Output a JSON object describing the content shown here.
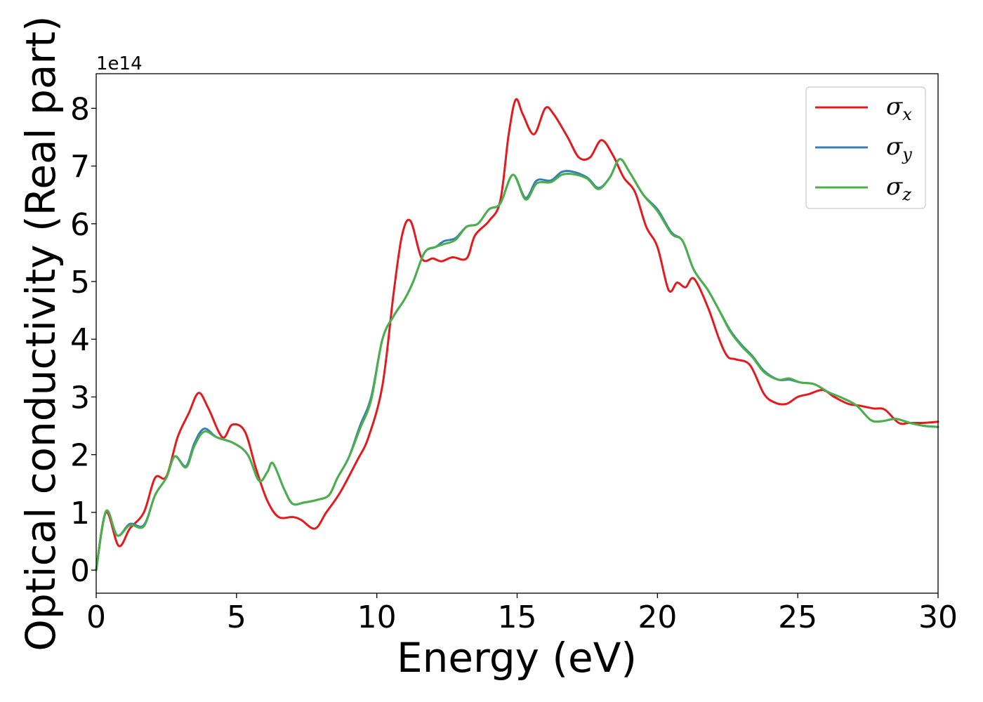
{
  "chart_data": {
    "type": "line",
    "xlabel": "Energy (eV)",
    "ylabel": "Optical conductivity (Real part)",
    "y_offset_label": "1e14",
    "y_scale": 100000000000000.0,
    "xlim": [
      0,
      30
    ],
    "ylim": [
      -0.4,
      8.6
    ],
    "x_ticks": [
      0,
      5,
      10,
      15,
      20,
      25,
      30
    ],
    "x_tick_labels": [
      "0",
      "5",
      "10",
      "15",
      "20",
      "25",
      "30"
    ],
    "y_ticks": [
      0,
      1,
      2,
      3,
      4,
      5,
      6,
      7,
      8
    ],
    "y_tick_labels": [
      "0",
      "1",
      "2",
      "3",
      "4",
      "5",
      "6",
      "7",
      "8"
    ],
    "grid": false,
    "legend_position": "top-right",
    "series": [
      {
        "name": "σx",
        "symbol": "σ",
        "subscript": "x",
        "color": "#e41a1c",
        "points": [
          [
            0,
            0
          ],
          [
            0.35,
            1.0
          ],
          [
            0.8,
            0.42
          ],
          [
            1.2,
            0.72
          ],
          [
            1.7,
            1.0
          ],
          [
            2.1,
            1.6
          ],
          [
            2.5,
            1.62
          ],
          [
            2.9,
            2.3
          ],
          [
            3.3,
            2.72
          ],
          [
            3.65,
            3.07
          ],
          [
            4.0,
            2.8
          ],
          [
            4.5,
            2.3
          ],
          [
            4.85,
            2.52
          ],
          [
            5.3,
            2.4
          ],
          [
            5.7,
            1.75
          ],
          [
            6.1,
            1.2
          ],
          [
            6.5,
            0.92
          ],
          [
            7.0,
            0.92
          ],
          [
            7.3,
            0.87
          ],
          [
            7.8,
            0.72
          ],
          [
            8.2,
            1.0
          ],
          [
            8.7,
            1.35
          ],
          [
            9.3,
            1.9
          ],
          [
            9.7,
            2.3
          ],
          [
            10.2,
            3.2
          ],
          [
            10.6,
            4.8
          ],
          [
            10.9,
            5.8
          ],
          [
            11.2,
            6.05
          ],
          [
            11.6,
            5.4
          ],
          [
            12.0,
            5.4
          ],
          [
            12.3,
            5.35
          ],
          [
            12.7,
            5.42
          ],
          [
            13.2,
            5.4
          ],
          [
            13.5,
            5.8
          ],
          [
            14.0,
            6.05
          ],
          [
            14.4,
            6.4
          ],
          [
            14.7,
            7.55
          ],
          [
            14.95,
            8.15
          ],
          [
            15.2,
            7.9
          ],
          [
            15.6,
            7.55
          ],
          [
            16.0,
            8.0
          ],
          [
            16.3,
            7.9
          ],
          [
            16.8,
            7.5
          ],
          [
            17.2,
            7.15
          ],
          [
            17.6,
            7.15
          ],
          [
            18.0,
            7.45
          ],
          [
            18.4,
            7.2
          ],
          [
            18.8,
            6.8
          ],
          [
            19.2,
            6.55
          ],
          [
            19.6,
            5.95
          ],
          [
            20.0,
            5.6
          ],
          [
            20.4,
            4.85
          ],
          [
            20.7,
            4.98
          ],
          [
            21.0,
            4.9
          ],
          [
            21.3,
            5.05
          ],
          [
            21.8,
            4.55
          ],
          [
            22.2,
            4.0
          ],
          [
            22.5,
            3.7
          ],
          [
            22.8,
            3.65
          ],
          [
            23.3,
            3.55
          ],
          [
            23.8,
            3.05
          ],
          [
            24.2,
            2.9
          ],
          [
            24.6,
            2.88
          ],
          [
            25.0,
            3.0
          ],
          [
            25.4,
            3.05
          ],
          [
            25.9,
            3.12
          ],
          [
            26.3,
            3.0
          ],
          [
            26.8,
            2.88
          ],
          [
            27.2,
            2.85
          ],
          [
            27.7,
            2.8
          ],
          [
            28.1,
            2.78
          ],
          [
            28.6,
            2.55
          ],
          [
            29.0,
            2.55
          ],
          [
            29.5,
            2.55
          ],
          [
            30.0,
            2.57
          ]
        ]
      },
      {
        "name": "σy",
        "symbol": "σ",
        "subscript": "y",
        "color": "#377eb8",
        "points": [
          [
            0,
            0
          ],
          [
            0.35,
            1.02
          ],
          [
            0.75,
            0.6
          ],
          [
            1.2,
            0.8
          ],
          [
            1.7,
            0.78
          ],
          [
            2.1,
            1.3
          ],
          [
            2.5,
            1.6
          ],
          [
            2.8,
            1.97
          ],
          [
            3.2,
            1.8
          ],
          [
            3.5,
            2.2
          ],
          [
            3.85,
            2.45
          ],
          [
            4.3,
            2.3
          ],
          [
            4.9,
            2.2
          ],
          [
            5.4,
            2.0
          ],
          [
            5.8,
            1.55
          ],
          [
            6.1,
            1.7
          ],
          [
            6.3,
            1.85
          ],
          [
            6.7,
            1.4
          ],
          [
            7.0,
            1.15
          ],
          [
            7.4,
            1.17
          ],
          [
            7.9,
            1.22
          ],
          [
            8.3,
            1.3
          ],
          [
            8.6,
            1.6
          ],
          [
            9.0,
            1.95
          ],
          [
            9.4,
            2.5
          ],
          [
            9.8,
            3.0
          ],
          [
            10.2,
            4.0
          ],
          [
            10.6,
            4.4
          ],
          [
            11.0,
            4.7
          ],
          [
            11.3,
            5.0
          ],
          [
            11.7,
            5.5
          ],
          [
            12.1,
            5.6
          ],
          [
            12.4,
            5.7
          ],
          [
            12.8,
            5.75
          ],
          [
            13.2,
            5.95
          ],
          [
            13.6,
            6.0
          ],
          [
            14.0,
            6.25
          ],
          [
            14.4,
            6.35
          ],
          [
            14.85,
            6.85
          ],
          [
            15.3,
            6.45
          ],
          [
            15.7,
            6.75
          ],
          [
            16.2,
            6.75
          ],
          [
            16.6,
            6.9
          ],
          [
            17.0,
            6.9
          ],
          [
            17.5,
            6.8
          ],
          [
            17.9,
            6.62
          ],
          [
            18.3,
            6.8
          ],
          [
            18.65,
            7.12
          ],
          [
            19.0,
            6.9
          ],
          [
            19.5,
            6.5
          ],
          [
            20.0,
            6.25
          ],
          [
            20.5,
            5.85
          ],
          [
            20.9,
            5.7
          ],
          [
            21.3,
            5.2
          ],
          [
            21.8,
            4.85
          ],
          [
            22.2,
            4.5
          ],
          [
            22.6,
            4.15
          ],
          [
            23.0,
            3.9
          ],
          [
            23.4,
            3.7
          ],
          [
            23.8,
            3.45
          ],
          [
            24.3,
            3.3
          ],
          [
            24.7,
            3.3
          ],
          [
            25.1,
            3.25
          ],
          [
            25.6,
            3.22
          ],
          [
            26.1,
            3.08
          ],
          [
            26.6,
            2.98
          ],
          [
            27.1,
            2.85
          ],
          [
            27.6,
            2.6
          ],
          [
            28.0,
            2.58
          ],
          [
            28.5,
            2.62
          ],
          [
            29.0,
            2.55
          ],
          [
            29.5,
            2.5
          ],
          [
            30.0,
            2.48
          ]
        ]
      },
      {
        "name": "σz",
        "symbol": "σ",
        "subscript": "z",
        "color": "#4daf4a",
        "points": [
          [
            0,
            0
          ],
          [
            0.35,
            1.02
          ],
          [
            0.75,
            0.6
          ],
          [
            1.2,
            0.78
          ],
          [
            1.7,
            0.76
          ],
          [
            2.1,
            1.3
          ],
          [
            2.5,
            1.6
          ],
          [
            2.8,
            1.97
          ],
          [
            3.2,
            1.78
          ],
          [
            3.5,
            2.15
          ],
          [
            3.85,
            2.4
          ],
          [
            4.3,
            2.3
          ],
          [
            4.9,
            2.2
          ],
          [
            5.4,
            2.0
          ],
          [
            5.8,
            1.55
          ],
          [
            6.1,
            1.7
          ],
          [
            6.3,
            1.85
          ],
          [
            6.7,
            1.4
          ],
          [
            7.0,
            1.15
          ],
          [
            7.4,
            1.17
          ],
          [
            7.9,
            1.22
          ],
          [
            8.3,
            1.3
          ],
          [
            8.6,
            1.6
          ],
          [
            9.0,
            1.95
          ],
          [
            9.4,
            2.45
          ],
          [
            9.8,
            2.95
          ],
          [
            10.2,
            4.0
          ],
          [
            10.6,
            4.4
          ],
          [
            11.0,
            4.7
          ],
          [
            11.3,
            5.0
          ],
          [
            11.7,
            5.5
          ],
          [
            12.1,
            5.6
          ],
          [
            12.4,
            5.65
          ],
          [
            12.8,
            5.72
          ],
          [
            13.2,
            5.95
          ],
          [
            13.6,
            6.0
          ],
          [
            14.0,
            6.25
          ],
          [
            14.4,
            6.35
          ],
          [
            14.85,
            6.85
          ],
          [
            15.3,
            6.42
          ],
          [
            15.7,
            6.7
          ],
          [
            16.2,
            6.72
          ],
          [
            16.6,
            6.85
          ],
          [
            17.0,
            6.86
          ],
          [
            17.5,
            6.78
          ],
          [
            17.9,
            6.6
          ],
          [
            18.3,
            6.8
          ],
          [
            18.65,
            7.12
          ],
          [
            19.0,
            6.9
          ],
          [
            19.5,
            6.5
          ],
          [
            20.0,
            6.22
          ],
          [
            20.5,
            5.83
          ],
          [
            20.9,
            5.7
          ],
          [
            21.3,
            5.2
          ],
          [
            21.8,
            4.85
          ],
          [
            22.2,
            4.5
          ],
          [
            22.6,
            4.13
          ],
          [
            23.0,
            3.88
          ],
          [
            23.4,
            3.68
          ],
          [
            23.8,
            3.43
          ],
          [
            24.3,
            3.3
          ],
          [
            24.7,
            3.32
          ],
          [
            25.1,
            3.25
          ],
          [
            25.6,
            3.22
          ],
          [
            26.1,
            3.08
          ],
          [
            26.6,
            2.98
          ],
          [
            27.1,
            2.85
          ],
          [
            27.6,
            2.6
          ],
          [
            28.0,
            2.58
          ],
          [
            28.5,
            2.62
          ],
          [
            29.0,
            2.55
          ],
          [
            29.5,
            2.5
          ],
          [
            30.0,
            2.48
          ]
        ]
      }
    ]
  }
}
